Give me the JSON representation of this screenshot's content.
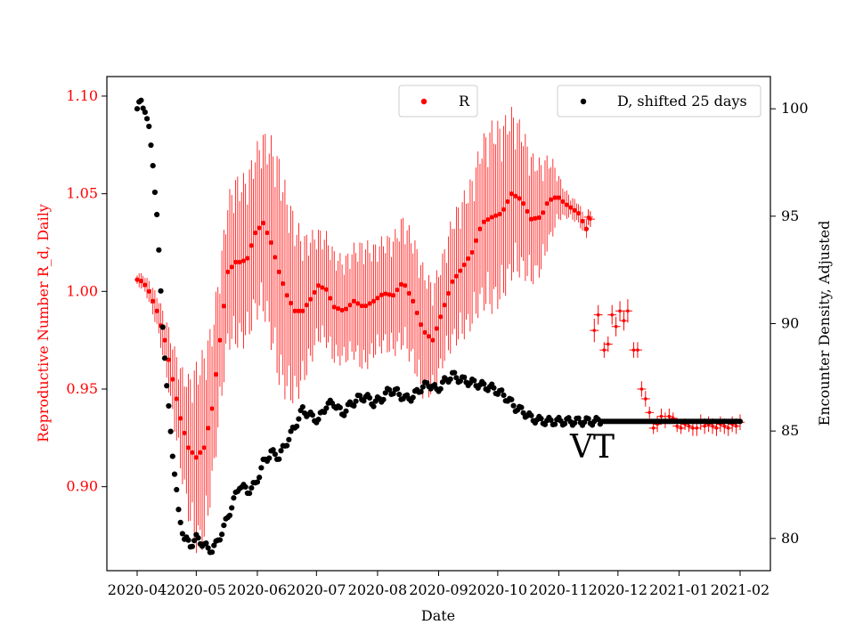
{
  "chart_data": {
    "type": "scatter",
    "xlabel": "Date",
    "ylabel_left": "Reproductive Number R_d, Daily",
    "ylabel_right": "Encounter Density, Adjusted",
    "ylim_left": [
      0.857,
      1.11
    ],
    "ylim_right": [
      78.5,
      101.5
    ],
    "x_start": "2020-04-01",
    "x_end": "2021-02-01",
    "x_ticks": [
      "2020-04",
      "2020-05",
      "2020-06",
      "2020-07",
      "2020-08",
      "2020-09",
      "2020-10",
      "2020-11",
      "2020-12",
      "2021-01",
      "2021-02"
    ],
    "x_tick_days": [
      0,
      30,
      61,
      91,
      122,
      153,
      183,
      214,
      244,
      275,
      306
    ],
    "y_ticks_left": [
      "0.90",
      "0.95",
      "1.00",
      "1.05",
      "1.10"
    ],
    "y_tick_values_left": [
      0.9,
      0.95,
      1.0,
      1.05,
      1.1
    ],
    "y_ticks_right": [
      "80",
      "85",
      "90",
      "95",
      "100"
    ],
    "y_tick_values_right": [
      80,
      85,
      90,
      95,
      100
    ],
    "annotation": "VT",
    "colors": {
      "r": "#ff0000",
      "d": "#000000",
      "left_axis": "#ff0000",
      "right_axis": "#000000"
    },
    "series": [
      {
        "name": "R",
        "legend": "R",
        "marker": "dot",
        "color": "#ff0000",
        "anchors_day": [
          0,
          3,
          6,
          10,
          14,
          18,
          22,
          26,
          30,
          34,
          38,
          42,
          46,
          50,
          53,
          56,
          60,
          64,
          68,
          72,
          76,
          80,
          84,
          88,
          92,
          96,
          100,
          105,
          110,
          115,
          120,
          125,
          130,
          135,
          140,
          145,
          150,
          155,
          160,
          165,
          170,
          175,
          180,
          185,
          190,
          195,
          200,
          205,
          208,
          211,
          214,
          217,
          220,
          224,
          228
        ],
        "anchors_val": [
          1.006,
          1.005,
          1.0,
          0.99,
          0.975,
          0.955,
          0.935,
          0.92,
          0.915,
          0.92,
          0.94,
          0.975,
          1.01,
          1.015,
          1.015,
          1.017,
          1.03,
          1.035,
          1.025,
          1.01,
          0.998,
          0.99,
          0.99,
          0.996,
          1.003,
          1.001,
          0.992,
          0.99,
          0.995,
          0.992,
          0.995,
          0.999,
          0.998,
          1.005,
          0.995,
          0.98,
          0.975,
          0.99,
          1.005,
          1.012,
          1.02,
          1.035,
          1.038,
          1.04,
          1.05,
          1.047,
          1.037,
          1.038,
          1.045,
          1.048,
          1.048,
          1.045,
          1.043,
          1.04,
          1.032
        ],
        "anchors_err": [
          0.004,
          0.004,
          0.006,
          0.009,
          0.014,
          0.02,
          0.028,
          0.038,
          0.05,
          0.052,
          0.045,
          0.04,
          0.04,
          0.045,
          0.045,
          0.045,
          0.045,
          0.048,
          0.055,
          0.06,
          0.055,
          0.05,
          0.04,
          0.035,
          0.03,
          0.03,
          0.03,
          0.028,
          0.03,
          0.035,
          0.03,
          0.03,
          0.032,
          0.035,
          0.035,
          0.035,
          0.03,
          0.03,
          0.035,
          0.038,
          0.04,
          0.045,
          0.05,
          0.048,
          0.045,
          0.04,
          0.035,
          0.03,
          0.025,
          0.02,
          0.012,
          0.008,
          0.006,
          0.006,
          0.005
        ],
        "sparse_days": [
          229,
          230,
          232,
          234,
          237,
          239,
          241,
          243,
          245,
          247,
          249,
          252,
          254,
          256,
          258,
          260,
          262,
          264,
          266,
          268,
          270,
          272,
          274,
          276,
          278,
          280,
          282,
          284,
          286,
          288,
          290,
          292,
          294,
          296,
          298,
          300,
          302,
          304,
          306
        ],
        "sparse_vals": [
          1.038,
          1.037,
          0.98,
          0.988,
          0.97,
          0.973,
          0.988,
          0.982,
          0.99,
          0.985,
          0.99,
          0.97,
          0.97,
          0.95,
          0.945,
          0.938,
          0.93,
          0.932,
          0.936,
          0.934,
          0.936,
          0.935,
          0.931,
          0.93,
          0.932,
          0.931,
          0.93,
          0.93,
          0.933,
          0.931,
          0.932,
          0.931,
          0.93,
          0.932,
          0.931,
          0.93,
          0.932,
          0.931,
          0.933
        ],
        "sparse_err": [
          0.004,
          0.004,
          0.006,
          0.005,
          0.004,
          0.004,
          0.005,
          0.005,
          0.005,
          0.005,
          0.006,
          0.004,
          0.004,
          0.004,
          0.004,
          0.003,
          0.003,
          0.004,
          0.004,
          0.004,
          0.004,
          0.003,
          0.003,
          0.003,
          0.003,
          0.003,
          0.004,
          0.004,
          0.004,
          0.004,
          0.004,
          0.004,
          0.004,
          0.004,
          0.004,
          0.004,
          0.004,
          0.004,
          0.004
        ]
      },
      {
        "name": "D",
        "legend": "D, shifted 25 days",
        "marker": "dot",
        "color": "#000000",
        "anchors_day": [
          0,
          2,
          4,
          6,
          8,
          10,
          12,
          15,
          18,
          21,
          24,
          27,
          30,
          33,
          36,
          38,
          40,
          44,
          48,
          52,
          56,
          60,
          64,
          68,
          72,
          76,
          80,
          84,
          88,
          92,
          96,
          100,
          104,
          108,
          112,
          116,
          120,
          124,
          128,
          132,
          136,
          140,
          144,
          148,
          152,
          156,
          160,
          164,
          168,
          172,
          176,
          180,
          184,
          188,
          192,
          196,
          200,
          204,
          208,
          212,
          216,
          220,
          224,
          228,
          232,
          236,
          306
        ],
        "anchors_val": [
          100,
          100.3,
          100,
          99,
          97.5,
          95,
          91.5,
          87,
          84,
          81.2,
          80,
          79.7,
          80,
          79.8,
          79.5,
          79.5,
          79.7,
          80.5,
          81.5,
          82.5,
          82.2,
          82.5,
          83.5,
          84,
          83.8,
          84.5,
          85.2,
          86,
          85.7,
          85.5,
          86.2,
          86.3,
          85.8,
          86.2,
          86.5,
          86.6,
          86.3,
          86.5,
          86.9,
          86.8,
          86.5,
          86.6,
          87,
          87.2,
          86.9,
          87.3,
          87.6,
          87.4,
          87.3,
          87.2,
          87.1,
          87,
          86.8,
          86.5,
          86.1,
          85.9,
          85.6,
          85.5,
          85.45,
          85.45,
          85.45,
          85.45,
          85.45,
          85.45,
          85.45,
          85.45,
          85.45
        ]
      }
    ]
  }
}
